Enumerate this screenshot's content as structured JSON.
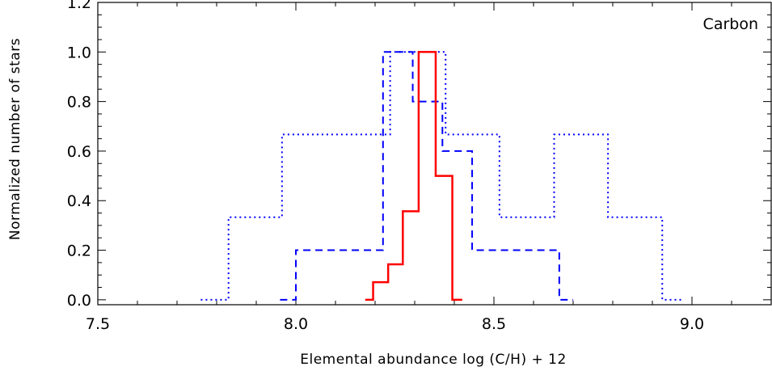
{
  "chart_data": {
    "type": "line",
    "step": true,
    "annotation": "Carbon",
    "xlabel": "Elemental abundance log (C/H) + 12",
    "ylabel": "Normalized number of stars",
    "xlim": [
      7.5,
      9.2
    ],
    "ylim": [
      -0.02,
      1.2
    ],
    "x_ticks": [
      7.5,
      8.0,
      8.5,
      9.0
    ],
    "x_tick_labels": [
      "7.5",
      "8.0",
      "8.5",
      "9.0"
    ],
    "y_ticks": [
      0.0,
      0.2,
      0.4,
      0.6,
      0.8,
      1.0,
      1.2
    ],
    "y_tick_labels": [
      "0.0",
      "0.2",
      "0.4",
      "0.6",
      "0.8",
      "1.0",
      "1.2"
    ],
    "grid": false,
    "series": [
      {
        "style": "dotted",
        "color": "#0000ff",
        "edges": [
          7.76,
          7.83,
          7.965,
          8.238,
          8.378,
          8.514,
          8.652,
          8.788,
          8.925,
          8.98
        ],
        "values": [
          0,
          0.333,
          0.667,
          1.0,
          0.667,
          0.333,
          0.667,
          0.333,
          0
        ]
      },
      {
        "style": "dashed",
        "color": "#0000ff",
        "edges": [
          7.96,
          8.0,
          8.22,
          8.295,
          8.37,
          8.445,
          8.665,
          8.7
        ],
        "values": [
          0,
          0.2,
          1.0,
          0.8,
          0.6,
          0.2,
          0
        ]
      },
      {
        "style": "solid",
        "color": "#ff0000",
        "edges": [
          8.175,
          8.195,
          8.233,
          8.27,
          8.31,
          8.353,
          8.395,
          8.42
        ],
        "values": [
          0,
          0.071,
          0.143,
          0.357,
          1.0,
          0.5,
          0
        ]
      }
    ]
  }
}
